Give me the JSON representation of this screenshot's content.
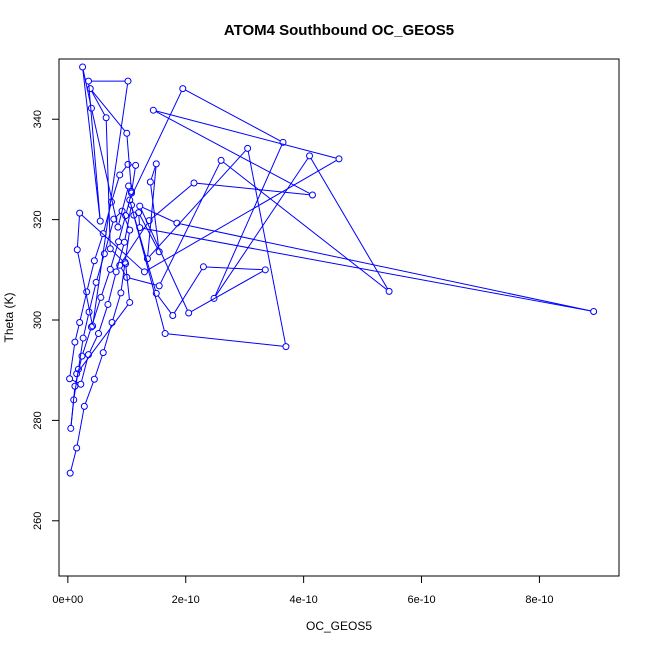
{
  "chart_data": {
    "type": "line",
    "markers": "open-circle",
    "title": "ATOM4 Southbound OC_GEOS5",
    "xlabel": "OC_GEOS5",
    "ylabel": "Theta (K)",
    "xlim": [
      -1.5e-11,
      9.35e-10
    ],
    "ylim": [
      249,
      352
    ],
    "grid": false,
    "color": "#0000ff",
    "x_ticks": [
      {
        "value": 0,
        "label": "0e+00"
      },
      {
        "value": 2e-10,
        "label": "2e-10"
      },
      {
        "value": 4e-10,
        "label": "4e-10"
      },
      {
        "value": 6e-10,
        "label": "6e-10"
      },
      {
        "value": 8e-10,
        "label": "8e-10"
      }
    ],
    "y_ticks": [
      {
        "value": 260,
        "label": "260"
      },
      {
        "value": 280,
        "label": "280"
      },
      {
        "value": 300,
        "label": "300"
      },
      {
        "value": 320,
        "label": "320"
      },
      {
        "value": 340,
        "label": "340"
      }
    ],
    "series": [
      {
        "x": [
          4e-12,
          1.5e-11,
          2.8e-11,
          4.5e-11,
          6e-11,
          7.5e-11,
          9e-11,
          9.7e-11,
          1.05e-10,
          9.2e-11,
          7.8e-11,
          6.2e-11,
          4.8e-11,
          3.6e-11,
          2.6e-11,
          1.8e-11,
          1e-11,
          5e-12,
          1.2e-11,
          2.4e-11,
          4e-11,
          5.6e-11,
          7.2e-11,
          8.6e-11,
          9.8e-11,
          1.08e-10,
          1.15e-10,
          1.02e-10,
          8.8e-11,
          7.4e-11,
          6e-11,
          4.5e-11,
          3.2e-11,
          2e-11,
          1.2e-11,
          3e-12,
          2.2e-11,
          3.5e-11,
          5.2e-11,
          6.8e-11,
          8.2e-11,
          9.6e-11,
          1.08e-10,
          1.12e-10,
          1.5e-10,
          1.78e-10,
          2.3e-10,
          3.35e-10,
          2.05e-10,
          1.22e-10,
          1.85e-10,
          8.92e-10,
          1.22e-10,
          1.2e-10,
          1.55e-10,
          1.4e-10,
          1.5e-10,
          1.35e-10,
          3.05e-10,
          3.7e-10,
          1.65e-10,
          1.05e-10,
          1.95e-10,
          3.65e-10,
          2.48e-10,
          4.1e-10,
          5.45e-10,
          2.6e-10,
          1.55e-10,
          1e-10,
          8.8e-11,
          1.38e-10,
          2.14e-10,
          4.15e-10,
          1.45e-10,
          4.6e-10,
          1.3e-10,
          2e-11,
          1.6e-11,
          4.2e-11,
          1.02e-10,
          3.5e-11,
          5.5e-11,
          2.5e-11,
          4e-11,
          8.5e-11,
          1.03e-10,
          1.08e-10,
          1e-10,
          3.8e-11,
          6.5e-11,
          7.2e-11,
          9.8e-11,
          1.05e-10,
          1.5e-11
        ],
        "y": [
          269.5,
          274.5,
          282.8,
          288.2,
          293.5,
          299.5,
          305.4,
          311.5,
          317.9,
          321.7,
          320.1,
          313.2,
          307.5,
          301.6,
          296.4,
          290.2,
          284.1,
          278.4,
          286.8,
          292.8,
          298.6,
          304.5,
          310.1,
          315.6,
          320.8,
          325.3,
          330.8,
          331,
          328.9,
          323.5,
          317.2,
          311.8,
          305.6,
          299.5,
          295.6,
          288.3,
          287.2,
          293.1,
          297.3,
          303.1,
          309.6,
          315.5,
          322.9,
          320.9,
          305.3,
          300.9,
          310.6,
          310,
          301.4,
          322.7,
          319.3,
          301.7,
          318.4,
          321.4,
          313.6,
          327.5,
          331.1,
          312.2,
          334.2,
          294.7,
          297.3,
          323.9,
          346.1,
          335.4,
          304.3,
          332.7,
          305.7,
          331.8,
          306.8,
          308.5,
          310.9,
          319.8,
          327.3,
          324.9,
          341.8,
          332.1,
          309.6,
          321.3,
          314,
          298.8,
          347.6,
          347.6,
          319.7,
          350.4,
          342.2,
          318.5,
          326.7,
          325.6,
          337.2,
          346.1,
          340.3,
          314.2,
          311.2,
          303.5,
          289.3
        ]
      }
    ]
  }
}
